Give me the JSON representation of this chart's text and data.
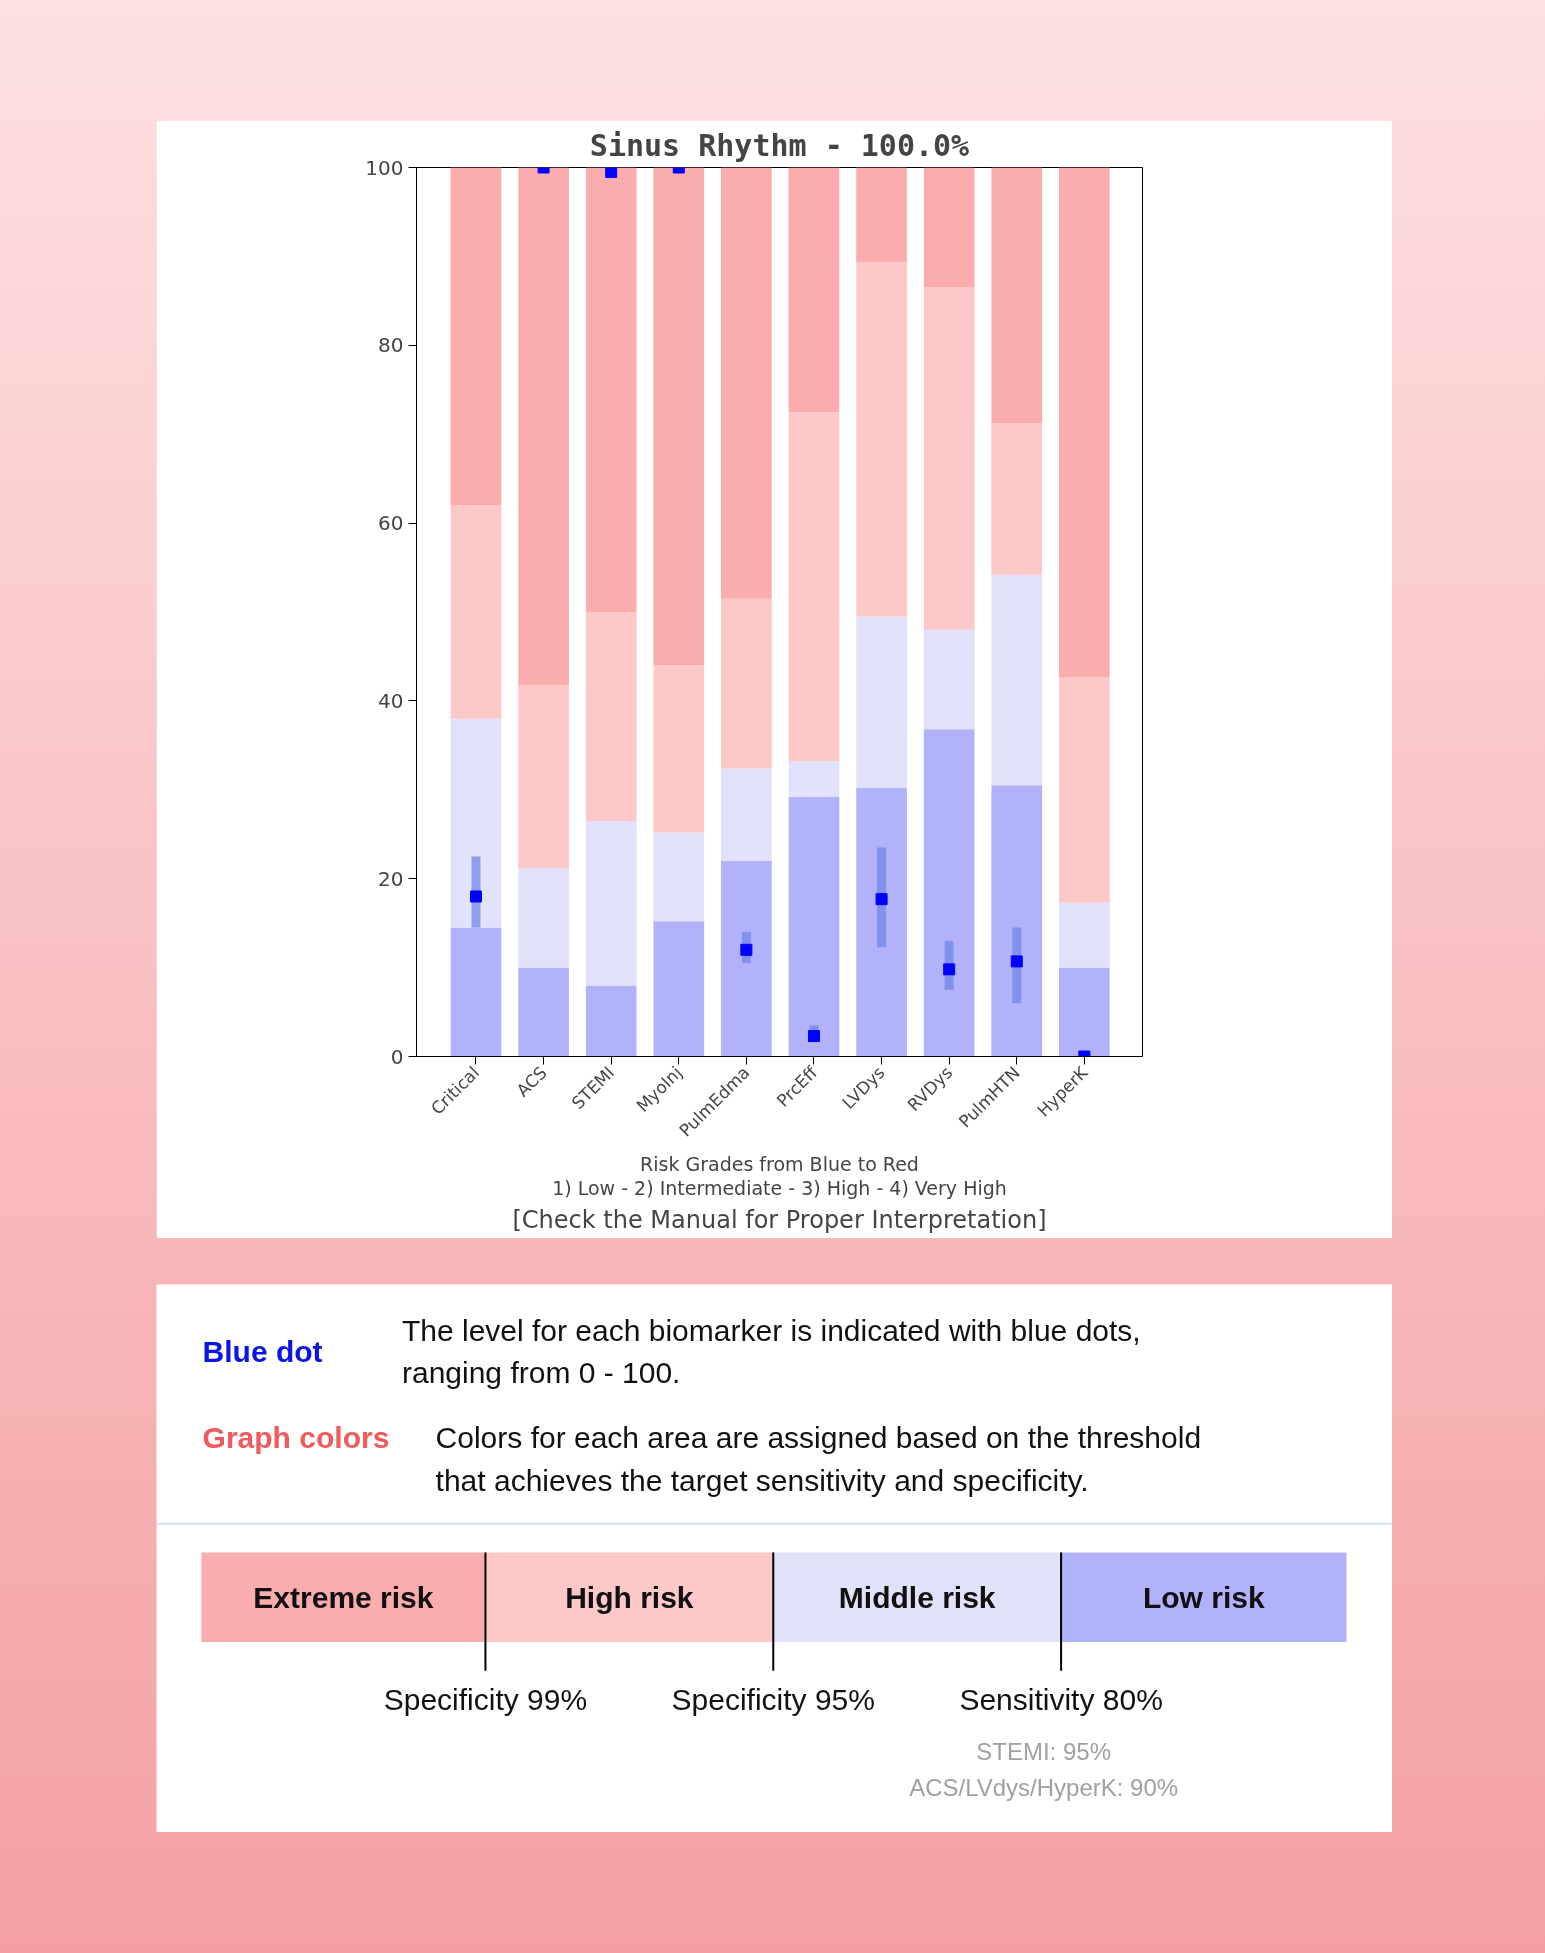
{
  "chart_data": [
    {
      "type": "bar",
      "title": "Sinus Rhythm - 100.0%",
      "stacked": true,
      "categories": [
        "Critical",
        "ACS",
        "STEMI",
        "MyoInj",
        "PulmEdma",
        "PrcEff",
        "LVDys",
        "RVDys",
        "PulmHTN",
        "HyperK"
      ],
      "series": [
        {
          "color": "#b1b2fa",
          "values": [
            14.5,
            10,
            8,
            15.2,
            22,
            29.2,
            30.2,
            36.8,
            30.5,
            10
          ]
        },
        {
          "color": "#e1e2fa",
          "values": [
            23.5,
            11.2,
            18.5,
            10,
            10.4,
            4,
            19.3,
            11.2,
            23.7,
            7.3
          ]
        },
        {
          "color": "#fcc8c8",
          "values": [
            24,
            20.6,
            23.5,
            18.8,
            19.1,
            39.3,
            39.8,
            38.5,
            17,
            25.4
          ]
        },
        {
          "color": "#fbadad",
          "values": [
            38,
            58.2,
            50,
            56,
            48.5,
            27.5,
            10.7,
            13.5,
            28.8,
            57.3
          ]
        },
        {
          "type": "scatter",
          "marker": "square",
          "color": "#0000ff",
          "x": [
            "Critical",
            "ACS",
            "STEMI",
            "MyoInj",
            "PulmEdma",
            "PrcEff",
            "LVDys",
            "RVDys",
            "PulmHTN",
            "HyperK"
          ],
          "values": [
            18,
            100,
            99.5,
            100,
            12,
            2.3,
            17.7,
            9.8,
            10.7,
            0
          ],
          "errors": [
            [
              14.5,
              22.5
            ],
            null,
            null,
            null,
            [
              10.5,
              14
            ],
            [
              2,
              3.5
            ],
            [
              12.3,
              23.5
            ],
            [
              7.5,
              13
            ],
            [
              6,
              14.5
            ],
            null
          ]
        }
      ],
      "ylim": [
        0,
        100
      ],
      "yticks": [
        0,
        20,
        40,
        60,
        80,
        100
      ],
      "grid": false,
      "annotations": [
        "Risk Grades from Blue to Red",
        "1) Low - 2) Intermediate - 3) High - 4) Very High",
        "[Check the Manual for Proper Interpretation]"
      ]
    },
    {
      "type": "other",
      "annotations": [
        "Blue dot",
        "The level for each biomarker is indicated with blue dots,\nranging from 0 - 100.",
        "Graph colors",
        "Colors for each area are assigned based on the threshold\nthat achieves the target sensitivity and specificity.",
        "Extreme risk",
        "High risk",
        "Middle risk",
        "Low risk",
        "Specificity 99%",
        "Specificity 95%",
        "Sensitivity 80%",
        "STEMI: 95%\nACS/LVdys/HyperK: 90%"
      ]
    }
  ]
}
